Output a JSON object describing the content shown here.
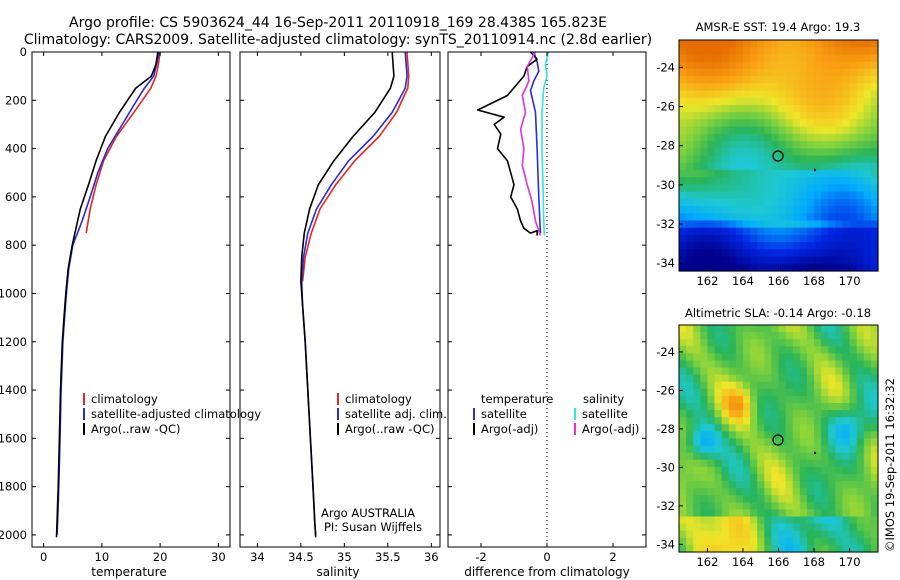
{
  "title": {
    "line1": "Argo profile: CS 5903624_44 16-Sep-2011 20110918_169 28.438S 165.823E",
    "line2": "Climatology: CARS2009. Satellite-adjusted climatology: synTS_20110914.nc (2.8d earlier)"
  },
  "credits": {
    "side_stamp": "©IMOS 19-Sep-2011 16:32:32",
    "argo_line1": "Argo AUSTRALIA",
    "argo_line2": "PI: Susan Wijffels"
  },
  "colors": {
    "climatology": "#e8251f",
    "satellite": "#2a2ae0",
    "argo": "#000000",
    "salinity_satellite": "#2ee6e6",
    "salinity_argo": "#e030e0"
  },
  "chart_data": [
    {
      "type": "line",
      "id": "temperature",
      "xlabel": "temperature",
      "ylabel": "",
      "xlim": [
        -2,
        32
      ],
      "ylim": [
        2050,
        0
      ],
      "xticks": [
        0,
        10,
        20,
        30
      ],
      "yticks": [
        0,
        200,
        400,
        600,
        800,
        1000,
        1200,
        1400,
        1600,
        1800,
        2000
      ],
      "legend": [
        "climatology",
        "satellite-adjusted climatology",
        "Argo(..raw -QC)"
      ],
      "series": [
        {
          "name": "climatology",
          "color": "#e8251f",
          "x": [
            20.0,
            19.7,
            19.3,
            18.4,
            15.5,
            12.5,
            10.3,
            9.0,
            8.0,
            7.3
          ],
          "y": [
            0,
            50,
            100,
            150,
            250,
            350,
            450,
            550,
            650,
            750
          ]
        },
        {
          "name": "satellite-adjusted climatology",
          "color": "#2a2ae0",
          "x": [
            19.8,
            19.4,
            18.9,
            17.3,
            16.0,
            13.5,
            11.0,
            9.3,
            8.0,
            6.6,
            5.0,
            4.3,
            3.9,
            3.6,
            3.3,
            3.0,
            2.8,
            2.6,
            2.4,
            2.3
          ],
          "y": [
            0,
            50,
            100,
            150,
            200,
            300,
            400,
            500,
            600,
            700,
            800,
            900,
            1000,
            1100,
            1200,
            1400,
            1600,
            1800,
            1950,
            2000
          ]
        },
        {
          "name": "Argo(..raw -QC)",
          "color": "#000000",
          "x": [
            19.6,
            19.3,
            18.5,
            15.8,
            13.0,
            10.6,
            9.0,
            7.7,
            6.3,
            4.9,
            4.2,
            3.8,
            3.5,
            3.2,
            2.9,
            2.7,
            2.5,
            2.3,
            2.2
          ],
          "y": [
            0,
            50,
            100,
            150,
            250,
            350,
            450,
            550,
            650,
            800,
            900,
            1000,
            1100,
            1200,
            1400,
            1600,
            1800,
            1950,
            2010
          ]
        }
      ]
    },
    {
      "type": "line",
      "id": "salinity",
      "xlabel": "salinity",
      "ylabel": "",
      "xlim": [
        33.8,
        36.1
      ],
      "ylim": [
        2050,
        0
      ],
      "xticks": [
        34,
        34.5,
        35,
        35.5,
        36
      ],
      "legend": [
        "climatology",
        "satellite adj. clim.",
        "Argo(..raw -QC)"
      ],
      "series": [
        {
          "name": "climatology",
          "color": "#e8251f",
          "x": [
            35.72,
            35.74,
            35.73,
            35.6,
            35.4,
            35.12,
            34.9,
            34.72,
            34.62,
            34.55,
            34.52
          ],
          "y": [
            0,
            100,
            150,
            250,
            350,
            450,
            550,
            650,
            750,
            850,
            950
          ]
        },
        {
          "name": "satellite adj. clim.",
          "color": "#2a2ae0",
          "x": [
            35.7,
            35.72,
            35.7,
            35.55,
            35.33,
            35.05,
            34.85,
            34.68,
            34.58,
            34.53,
            34.51,
            34.52,
            34.55,
            34.58,
            34.61,
            34.64,
            34.66,
            34.67
          ],
          "y": [
            0,
            100,
            150,
            250,
            350,
            450,
            550,
            650,
            750,
            850,
            950,
            1050,
            1200,
            1400,
            1600,
            1800,
            1950,
            2000
          ]
        },
        {
          "name": "Argo(..raw -QC)",
          "color": "#000000",
          "x": [
            35.55,
            35.57,
            35.53,
            35.35,
            35.1,
            34.88,
            34.7,
            34.6,
            34.54,
            34.51,
            34.5,
            34.52,
            34.55,
            34.58,
            34.61,
            34.64,
            34.66,
            34.67
          ],
          "y": [
            0,
            100,
            150,
            250,
            350,
            450,
            550,
            650,
            750,
            850,
            950,
            1050,
            1200,
            1400,
            1600,
            1800,
            1950,
            2010
          ]
        }
      ]
    },
    {
      "type": "line",
      "id": "difference",
      "xlabel": "difference from climatology",
      "ylabel": "",
      "xlim": [
        -3.0,
        3.0
      ],
      "ylim": [
        2050,
        0
      ],
      "xticks": [
        -2,
        0,
        2
      ],
      "legend_temperature": [
        "temperature",
        "satellite",
        "Argo(-adj)"
      ],
      "legend_salinity": [
        "salinity",
        "satellite",
        "Argo(-adj)"
      ],
      "series": [
        {
          "name": "temperature satellite",
          "color": "#2a2ae0",
          "x": [
            -0.4,
            -0.3,
            -0.25,
            -0.4,
            -0.5,
            -0.35,
            -0.3,
            -0.25,
            -0.2
          ],
          "y": [
            0,
            40,
            80,
            120,
            160,
            250,
            400,
            600,
            750
          ]
        },
        {
          "name": "temperature Argo(-adj)",
          "color": "#000000",
          "x": [
            -0.5,
            -0.3,
            -0.6,
            -0.7,
            -1.2,
            -2.1,
            -1.3,
            -1.6,
            -1.4,
            -1.5,
            -1.2,
            -1.1,
            -1.0,
            -1.1,
            -0.9,
            -0.8,
            -0.7,
            -0.5,
            -0.3,
            -0.3
          ],
          "y": [
            0,
            30,
            60,
            100,
            180,
            240,
            270,
            300,
            340,
            400,
            450,
            500,
            550,
            600,
            650,
            700,
            730,
            750,
            740,
            760
          ]
        },
        {
          "name": "salinity satellite",
          "color": "#2ee6e6",
          "x": [
            0.05,
            -0.05,
            0.0,
            -0.1,
            -0.15,
            -0.15,
            -0.12,
            -0.1,
            -0.08
          ],
          "y": [
            0,
            50,
            100,
            150,
            250,
            400,
            550,
            700,
            760
          ]
        },
        {
          "name": "salinity Argo(-adj)",
          "color": "#e030e0",
          "x": [
            -0.35,
            -0.6,
            -0.55,
            -0.75,
            -0.65,
            -0.8,
            -0.7,
            -0.75,
            -0.6,
            -0.45,
            -0.35,
            -0.2
          ],
          "y": [
            0,
            60,
            120,
            180,
            250,
            320,
            400,
            470,
            550,
            620,
            700,
            760
          ]
        }
      ]
    },
    {
      "type": "heatmap",
      "id": "sst",
      "title": "AMSR-E SST: 19.4 Argo: 19.3",
      "xlim": [
        160.4,
        171.6
      ],
      "ylim": [
        -34.4,
        -22.6
      ],
      "xticks": [
        162,
        164,
        166,
        168,
        170
      ],
      "yticks": [
        -24,
        -26,
        -28,
        -30,
        -32,
        -34
      ],
      "marker": {
        "lon": 165.823,
        "lat": -28.438
      }
    },
    {
      "type": "heatmap",
      "id": "sla",
      "title": "Altimetric SLA: -0.14 Argo: -0.18",
      "xlim": [
        160.4,
        171.6
      ],
      "ylim": [
        -34.4,
        -22.6
      ],
      "xticks": [
        162,
        164,
        166,
        168,
        170
      ],
      "yticks": [
        -24,
        -26,
        -28,
        -30,
        -32,
        -34
      ],
      "marker": {
        "lon": 165.823,
        "lat": -28.438
      }
    }
  ]
}
